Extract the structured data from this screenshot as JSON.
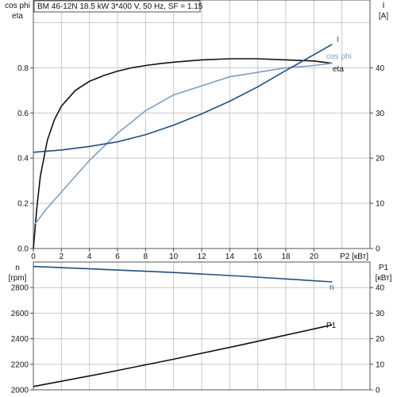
{
  "header": {
    "title": "BM 46-12N   18.5 kW   3*400 V, 50 Hz, SF = 1.15"
  },
  "colors": {
    "eta": "#111111",
    "cos_phi": "#7f9fbf",
    "I": "#1f4f7f",
    "n": "#1f4f7f",
    "P1": "#111111",
    "grid": "#c8c8c8"
  },
  "chart_data": [
    {
      "type": "line",
      "x_ticks": [
        "0",
        "2",
        "4",
        "6",
        "8",
        "10",
        "12",
        "14",
        "16",
        "18",
        "20"
      ],
      "xlabel": "P2 [кВт]",
      "xlim": [
        0,
        24
      ],
      "left_axis": {
        "label_lines": [
          "cos phi",
          "eta"
        ],
        "ylim": [
          0,
          1.1
        ],
        "ticks": [
          "0.0",
          "0.2",
          "0.4",
          "0.6",
          "0.8"
        ],
        "tick_values": [
          0,
          0.2,
          0.4,
          0.6,
          0.8
        ]
      },
      "right_axis": {
        "label_lines": [
          "I",
          "[A]"
        ],
        "ylim": [
          0,
          55
        ],
        "ticks": [
          "0",
          "10",
          "20",
          "30",
          "40"
        ],
        "tick_values": [
          0,
          10,
          20,
          30,
          40
        ]
      },
      "grid": true,
      "series": [
        {
          "name": "eta",
          "axis": "left",
          "x": [
            0,
            0.25,
            0.5,
            1,
            1.5,
            2,
            3,
            4,
            5,
            6,
            7,
            8,
            9,
            10,
            12,
            14,
            16,
            18,
            20,
            21.3
          ],
          "y": [
            0,
            0.18,
            0.32,
            0.48,
            0.57,
            0.63,
            0.7,
            0.74,
            0.765,
            0.785,
            0.8,
            0.81,
            0.818,
            0.825,
            0.835,
            0.84,
            0.84,
            0.835,
            0.83,
            0.82
          ]
        },
        {
          "name": "cos phi",
          "axis": "left",
          "x": [
            0,
            1,
            2,
            3,
            4,
            5,
            6,
            7,
            8,
            10,
            12,
            14,
            16,
            18,
            20,
            21.3
          ],
          "y": [
            0.1,
            0.18,
            0.25,
            0.32,
            0.39,
            0.45,
            0.51,
            0.56,
            0.61,
            0.68,
            0.72,
            0.76,
            0.78,
            0.8,
            0.81,
            0.82
          ]
        },
        {
          "name": "I",
          "axis": "right",
          "x": [
            0,
            2,
            4,
            6,
            8,
            10,
            12,
            14,
            16,
            18,
            20,
            21.3
          ],
          "y": [
            21.3,
            21.8,
            22.6,
            23.6,
            25.2,
            27.3,
            29.8,
            32.6,
            35.8,
            39.4,
            42.9,
            45.2
          ]
        }
      ]
    },
    {
      "type": "line",
      "x_ticks": [],
      "xlim": [
        0,
        24
      ],
      "left_axis": {
        "label_lines": [
          "n",
          "[rpm]"
        ],
        "ylim": [
          2000,
          3000
        ],
        "ticks": [
          "2000",
          "2200",
          "2400",
          "2600",
          "2800"
        ],
        "tick_values": [
          2000,
          2200,
          2400,
          2600,
          2800
        ]
      },
      "right_axis": {
        "label_lines": [
          "P1",
          "[кВт]"
        ],
        "ylim": [
          0,
          50
        ],
        "ticks": [
          "0",
          "10",
          "20",
          "30",
          "40"
        ],
        "tick_values": [
          0,
          10,
          20,
          30,
          40
        ]
      },
      "grid": true,
      "series": [
        {
          "name": "n",
          "axis": "left",
          "x": [
            0,
            5,
            10,
            15,
            21.3
          ],
          "y": [
            2965,
            2942,
            2918,
            2888,
            2845
          ]
        },
        {
          "name": "P1",
          "axis": "right",
          "x": [
            0,
            5,
            10,
            15,
            21.3
          ],
          "y": [
            1.3,
            6.5,
            12,
            17.8,
            25.4
          ]
        }
      ]
    }
  ]
}
